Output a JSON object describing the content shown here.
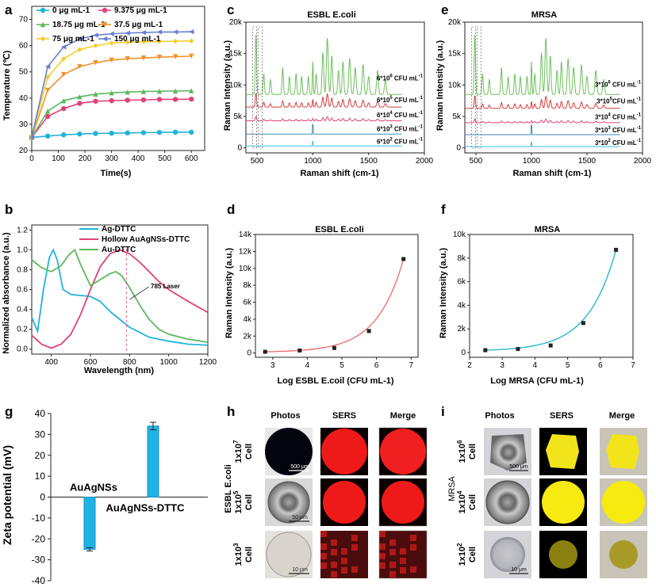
{
  "chart_data": [
    {
      "id": "a",
      "panel_label": "a",
      "type": "line",
      "xlabel": "Time(s)",
      "ylabel": "Temperature (℃)",
      "xlim": [
        0,
        650
      ],
      "ylim": [
        20,
        75
      ],
      "xticks": [
        0,
        100,
        200,
        300,
        400,
        500,
        600
      ],
      "yticks": [
        20,
        30,
        40,
        50,
        60,
        70
      ],
      "legend": [
        "0 μg mL-1",
        "9.375 μg mL-1",
        "18.75 μg mL-1",
        "37.5 μg mL-1",
        "75 μg mL-1",
        "150 μg mL-1"
      ],
      "series": [
        {
          "name": "0 μg mL-1",
          "color": "#1fb3d9",
          "marker": "circle",
          "x": [
            0,
            60,
            120,
            180,
            240,
            300,
            360,
            420,
            480,
            540,
            600
          ],
          "y": [
            25,
            25.5,
            26,
            26.3,
            26.5,
            26.6,
            26.7,
            26.8,
            26.9,
            27,
            27
          ]
        },
        {
          "name": "9.375 μg mL-1",
          "color": "#e0427a",
          "marker": "circle",
          "x": [
            0,
            60,
            120,
            180,
            240,
            300,
            360,
            420,
            480,
            540,
            600
          ],
          "y": [
            25,
            33,
            36,
            38,
            38.8,
            39,
            39.2,
            39.3,
            39.5,
            39.5,
            39.6
          ]
        },
        {
          "name": "18.75 μg mL-1",
          "color": "#5cb85c",
          "marker": "triangle",
          "x": [
            0,
            60,
            120,
            180,
            240,
            300,
            360,
            420,
            480,
            540,
            600
          ],
          "y": [
            25,
            35,
            39,
            40.5,
            41.5,
            42,
            42.3,
            42.5,
            42.6,
            42.7,
            42.8
          ]
        },
        {
          "name": "37.5 μg mL-1",
          "color": "#f0932b",
          "marker": "tri-down",
          "x": [
            0,
            60,
            120,
            180,
            240,
            300,
            360,
            420,
            480,
            540,
            600
          ],
          "y": [
            25,
            43,
            49,
            52,
            53.5,
            54.5,
            55,
            55.3,
            55.6,
            55.8,
            56
          ]
        },
        {
          "name": "75 μg mL-1",
          "color": "#f5cd2a",
          "marker": "diamond",
          "x": [
            0,
            60,
            120,
            180,
            240,
            300,
            360,
            420,
            480,
            540,
            600
          ],
          "y": [
            25,
            48,
            55,
            58.5,
            60,
            61,
            61.3,
            61.5,
            61.6,
            61.7,
            61.8
          ]
        },
        {
          "name": "150 μg mL-1",
          "color": "#6a7fd0",
          "marker": "tri-left",
          "x": [
            0,
            60,
            120,
            180,
            240,
            300,
            360,
            420,
            480,
            540,
            600
          ],
          "y": [
            25,
            52,
            59.5,
            62.5,
            64,
            64.5,
            64.8,
            65,
            65.2,
            65.2,
            65.3
          ]
        }
      ]
    },
    {
      "id": "b",
      "panel_label": "b",
      "type": "line",
      "xlabel": "Wavelength (nm)",
      "ylabel": "Normalized absorbance (a.u.)",
      "xlim": [
        300,
        1200
      ],
      "ylim": [
        -0.05,
        1.25
      ],
      "xticks": [
        400,
        600,
        800,
        1000,
        1200
      ],
      "yticks": [
        0.0,
        0.2,
        0.4,
        0.6,
        0.8,
        1.0,
        1.2
      ],
      "annotation": "785 Laser",
      "annotation_x": 785,
      "legend": [
        "Ag-DTTC",
        "Hollow AuAgNSs-DTTC",
        "Au-DTTC"
      ],
      "series": [
        {
          "name": "Ag-DTTC",
          "color": "#1fb3d9",
          "x": [
            300,
            330,
            360,
            390,
            410,
            430,
            460,
            500,
            550,
            600,
            650,
            700,
            750,
            800,
            900,
            1000,
            1100,
            1200
          ],
          "y": [
            0.32,
            0.18,
            0.6,
            0.92,
            1.0,
            0.9,
            0.6,
            0.55,
            0.54,
            0.53,
            0.48,
            0.38,
            0.3,
            0.22,
            0.12,
            0.08,
            0.05,
            0.04
          ]
        },
        {
          "name": "Hollow AuAgNSs-DTTC",
          "color": "#e0427a",
          "x": [
            300,
            350,
            400,
            450,
            500,
            550,
            600,
            650,
            700,
            750,
            800,
            850,
            900,
            950,
            1000,
            1100,
            1200
          ],
          "y": [
            0.14,
            0.05,
            0.01,
            0.05,
            0.15,
            0.35,
            0.6,
            0.83,
            0.96,
            1.0,
            0.96,
            0.88,
            0.78,
            0.68,
            0.6,
            0.48,
            0.37
          ]
        },
        {
          "name": "Au-DTTC",
          "color": "#5cb85c",
          "x": [
            300,
            350,
            400,
            450,
            490,
            520,
            550,
            600,
            650,
            700,
            730,
            760,
            800,
            850,
            900,
            950,
            1000,
            1100,
            1200
          ],
          "y": [
            0.9,
            0.82,
            0.78,
            0.84,
            0.95,
            1.0,
            0.85,
            0.64,
            0.7,
            0.76,
            0.78,
            0.74,
            0.62,
            0.45,
            0.3,
            0.2,
            0.15,
            0.1,
            0.07
          ]
        }
      ]
    },
    {
      "id": "c",
      "panel_label": "c",
      "type": "line",
      "title": "ESBL E.coli",
      "xlabel": "Raman shift (cm-1)",
      "ylabel": "Raman Intensity (a.u.)",
      "xlim": [
        400,
        2000
      ],
      "ylim": [
        -800,
        20000
      ],
      "xticks": [
        500,
        1000,
        1500,
        2000
      ],
      "yticks": [
        0,
        5000,
        10000,
        15000,
        20000
      ],
      "ytick_labels": [
        "0",
        "5k",
        "10k",
        "15k",
        "20k"
      ],
      "series": [
        {
          "name": "6*10^6 CFU mL-1",
          "label": "6*10",
          "exp": "6",
          "unit": " CFU mL",
          "color": "#6fbf5f",
          "offset": 8500,
          "amp": 9500,
          "label_y": 10500
        },
        {
          "name": "6*10^5 CFU mL-1",
          "label": "6*10",
          "exp": "5",
          "unit": " CFU mL",
          "color": "#d63b3b",
          "offset": 6500,
          "amp": 2200,
          "label_y": 7000
        },
        {
          "name": "6*10^4 CFU mL-1",
          "label": "6*10",
          "exp": "4",
          "unit": " CFU mL",
          "color": "#e0427a",
          "offset": 4300,
          "amp": 700,
          "label_y": 4600
        },
        {
          "name": "6*10^3 CFU mL-1",
          "label": "6*10",
          "exp": "3",
          "unit": " CFU mL",
          "color": "#3a8fb5",
          "offset": 2200,
          "amp": 250,
          "label_y": 2400
        },
        {
          "name": "6*10^2 CFU mL-1",
          "label": "6*10",
          "exp": "2",
          "unit": " CFU mL",
          "color": "#3fc0e8",
          "offset": 300,
          "amp": 120,
          "label_y": 400
        }
      ]
    },
    {
      "id": "e",
      "panel_label": "e",
      "type": "line",
      "title": "MRSA",
      "xlabel": "Raman shift (cm-1)",
      "ylabel": "Raman Intensity (a.u.)",
      "xlim": [
        400,
        2000
      ],
      "ylim": [
        -800,
        20000
      ],
      "xticks": [
        500,
        1000,
        1500,
        2000
      ],
      "yticks": [
        0,
        5000,
        10000,
        15000,
        20000
      ],
      "ytick_labels": [
        "0",
        "5k",
        "10k",
        "15k",
        "20k"
      ],
      "series": [
        {
          "name": "3*10^6 CFU mL-1",
          "label": "3*10",
          "exp": "6",
          "unit": " CFU mL",
          "color": "#6fbf5f",
          "offset": 8500,
          "amp": 9500,
          "label_y": 9500
        },
        {
          "name": "3*10^5 CFU mL-1",
          "label": "3*10",
          "exp": "5",
          "unit": "CFU mL",
          "color": "#d63b3b",
          "offset": 6300,
          "amp": 2000,
          "label_y": 6800
        },
        {
          "name": "3*10^4 CFU mL-1",
          "label": "3*10",
          "exp": "4",
          "unit": " CFU mL",
          "color": "#e0427a",
          "offset": 4000,
          "amp": 600,
          "label_y": 4300
        },
        {
          "name": "3*10^3 CFU mL-1",
          "label": "3*10",
          "exp": "3",
          "unit": " CFU mL",
          "color": "#3a8fb5",
          "offset": 2100,
          "amp": 250,
          "label_y": 2200
        },
        {
          "name": "3*10^2 CFU mL-1",
          "label": "3*10",
          "exp": "2",
          "unit": " CFU mL",
          "color": "#3fc0e8",
          "offset": 200,
          "amp": 120,
          "label_y": 200
        }
      ]
    },
    {
      "id": "d",
      "panel_label": "d",
      "type": "scatter",
      "title": "ESBL E.coli",
      "xlabel": "Log ESBL E.coil (CFU mL-1)",
      "ylabel": "Raman Intensity (a.u.)",
      "xlim": [
        2.5,
        7.2
      ],
      "ylim": [
        -500,
        14000
      ],
      "xticks": [
        3,
        4,
        5,
        6,
        7
      ],
      "yticks": [
        0,
        2000,
        4000,
        6000,
        8000,
        10000,
        12000,
        14000
      ],
      "ytick_labels": [
        "0",
        "2k",
        "4k",
        "6k",
        "8k",
        "10k",
        "12k",
        "14k"
      ],
      "fit_color": "#e8736f",
      "x": [
        2.78,
        3.78,
        4.78,
        5.78,
        6.78
      ],
      "y": [
        150,
        300,
        600,
        2600,
        11100
      ]
    },
    {
      "id": "f",
      "panel_label": "f",
      "type": "scatter",
      "title": "MRSA",
      "xlabel": "Log MRSA (CFU mL-1)",
      "ylabel": "Raman Intensity (a.u.)",
      "xlim": [
        2,
        7
      ],
      "ylim": [
        -400,
        10000
      ],
      "xticks": [
        2,
        3,
        4,
        5,
        6,
        7
      ],
      "yticks": [
        0,
        2000,
        4000,
        6000,
        8000,
        10000
      ],
      "ytick_labels": [
        "0",
        "2k",
        "4k",
        "6k",
        "8k",
        "10k"
      ],
      "fit_color": "#29b6d6",
      "x": [
        2.48,
        3.48,
        4.48,
        5.48,
        6.48
      ],
      "y": [
        200,
        300,
        600,
        2500,
        8700
      ]
    },
    {
      "id": "g",
      "panel_label": "g",
      "type": "bar",
      "ylabel": "Zeta potential (mV)",
      "ylim": [
        -40,
        40
      ],
      "yticks": [
        -40,
        -30,
        -20,
        -10,
        0,
        10,
        20,
        30,
        40
      ],
      "categories": [
        "AuAgNSs",
        "AuAgNSs-DTTC"
      ],
      "values": [
        -25,
        34
      ],
      "errors": [
        0.8,
        1.8
      ],
      "color": "#1fb3e8"
    }
  ],
  "panel_h": {
    "label": "h",
    "row_title": "ESBL E.coli",
    "headers": [
      "Photos",
      "SERS",
      "Merge"
    ],
    "rows": [
      {
        "base": "1x10",
        "exp": "7",
        "suffix": "Cell",
        "scale": "500 μm"
      },
      {
        "base": "1x10",
        "exp": "5",
        "suffix": "Cell",
        "scale": "50 μm"
      },
      {
        "base": "1x10",
        "exp": "3",
        "suffix": "Cell",
        "scale": "10 μm"
      }
    ]
  },
  "panel_i": {
    "label": "i",
    "row_title": "MRSA",
    "headers": [
      "Photos",
      "SERS",
      "Merge"
    ],
    "rows": [
      {
        "base": "1x10",
        "exp": "6",
        "suffix": "Cell",
        "scale": "500 μm"
      },
      {
        "base": "1x10",
        "exp": "4",
        "suffix": "Cell",
        "scale": ""
      },
      {
        "base": "1x10",
        "exp": "2",
        "suffix": "Cell",
        "scale": "10 μm"
      }
    ]
  }
}
